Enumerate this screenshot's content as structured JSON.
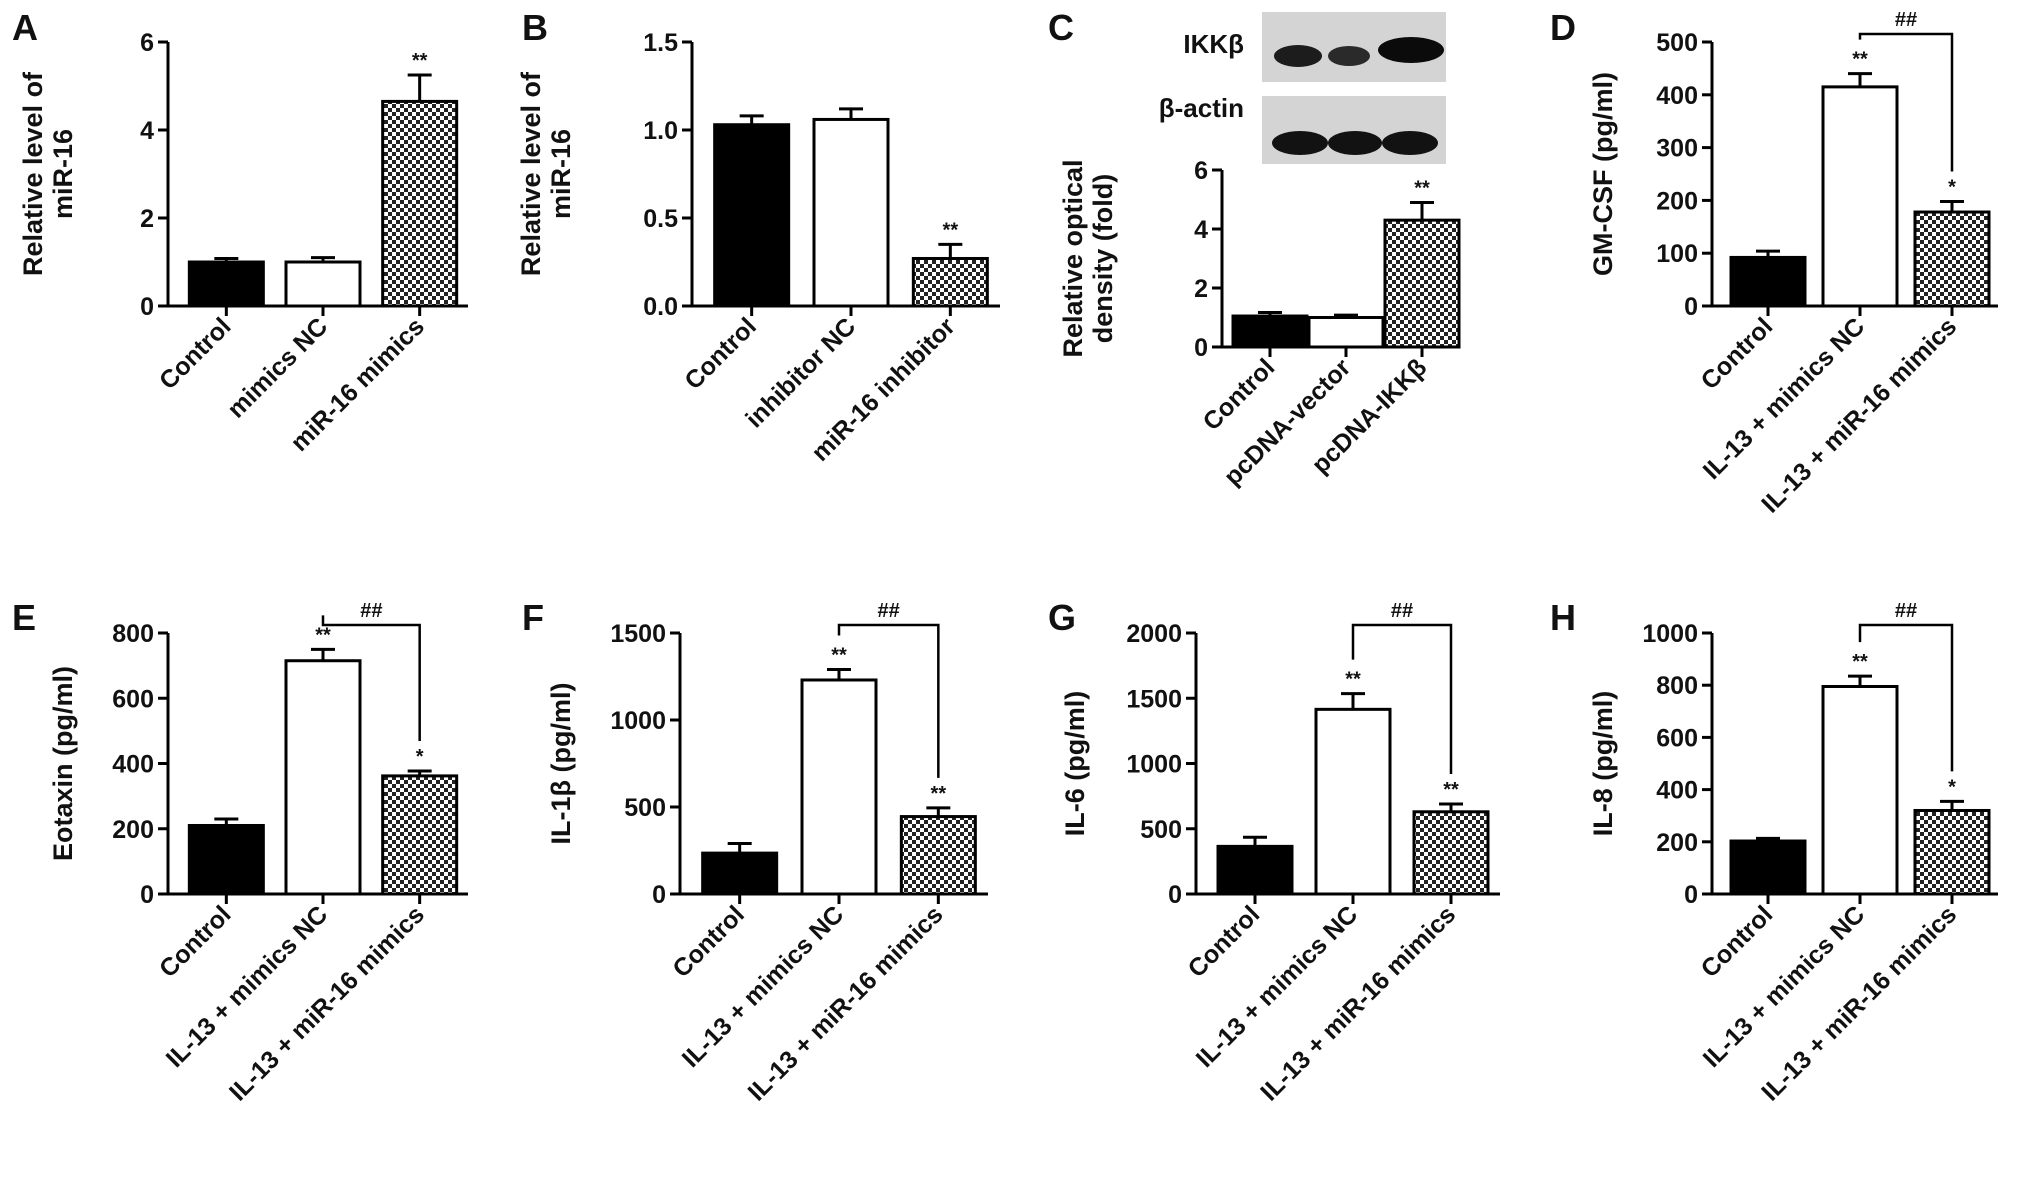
{
  "colors": {
    "solid": "#000000",
    "open": "#ffffff",
    "hatched": "checkerboard-pattern",
    "axis": "#000000",
    "blot_background": "#d6d6d6"
  },
  "panels": [
    {
      "letter": "A"
    },
    {
      "letter": "B"
    },
    {
      "letter": "C"
    },
    {
      "letter": "D"
    },
    {
      "letter": "E"
    },
    {
      "letter": "F"
    },
    {
      "letter": "G"
    },
    {
      "letter": "H"
    }
  ],
  "western_blot": {
    "bands": [
      "IKKβ",
      "β-actin"
    ],
    "lanes": 3
  },
  "chart_data": [
    {
      "panel": "A",
      "type": "bar",
      "categories": [
        "Control",
        "mimics NC",
        "miR-16 mimics"
      ],
      "values": [
        1.0,
        1.0,
        4.65
      ],
      "errors": [
        0.08,
        0.1,
        0.6
      ],
      "fills": [
        "solid",
        "open",
        "hatched"
      ],
      "ylabel": [
        "Relative  level of",
        "miR-16"
      ],
      "ylim": [
        0,
        6
      ],
      "yticks": [
        0,
        2,
        4,
        6
      ],
      "ytick_labels": [
        "0",
        "2",
        "4",
        "6"
      ],
      "annotations": [
        "",
        "",
        "**"
      ],
      "bracket": null
    },
    {
      "panel": "B",
      "type": "bar",
      "categories": [
        "Control",
        "inhibitor NC",
        "miR-16 inhibitor"
      ],
      "values": [
        1.03,
        1.06,
        0.27
      ],
      "errors": [
        0.05,
        0.06,
        0.08
      ],
      "fills": [
        "solid",
        "open",
        "hatched"
      ],
      "ylabel": [
        "Relative  level of",
        "miR-16"
      ],
      "ylim": [
        0,
        1.5
      ],
      "yticks": [
        0,
        0.5,
        1.0,
        1.5
      ],
      "ytick_labels": [
        "0.0",
        "0.5",
        "1.0",
        "1.5"
      ],
      "annotations": [
        "",
        "",
        "**"
      ],
      "bracket": null
    },
    {
      "panel": "C",
      "type": "bar",
      "categories": [
        "Control",
        "pcDNA-vector",
        "pcDNA-IKKβ"
      ],
      "values": [
        1.05,
        1.0,
        4.3
      ],
      "errors": [
        0.12,
        0.08,
        0.6
      ],
      "fills": [
        "solid",
        "open",
        "hatched"
      ],
      "ylabel": [
        "Relative optical",
        "density (fold)"
      ],
      "ylim": [
        0,
        6
      ],
      "yticks": [
        0,
        2,
        4,
        6
      ],
      "ytick_labels": [
        "0",
        "2",
        "4",
        "6"
      ],
      "annotations": [
        "",
        "",
        "**"
      ],
      "bracket": null
    },
    {
      "panel": "D",
      "type": "bar",
      "categories": [
        "Control",
        "IL-13 + mimics NC",
        "IL-13 + miR-16 mimics"
      ],
      "values": [
        92,
        415,
        178
      ],
      "errors": [
        12,
        25,
        20
      ],
      "fills": [
        "solid",
        "open",
        "hatched"
      ],
      "ylabel": [
        "GM-CSF (pg/ml)"
      ],
      "ylim": [
        0,
        500
      ],
      "yticks": [
        0,
        100,
        200,
        300,
        400,
        500
      ],
      "ytick_labels": [
        "0",
        "100",
        "200",
        "300",
        "400",
        "500"
      ],
      "annotations": [
        "",
        "**",
        "*"
      ],
      "bracket": {
        "from": 1,
        "to": 2,
        "label": "##"
      }
    },
    {
      "panel": "E",
      "type": "bar",
      "categories": [
        "Control",
        "IL-13 + mimics NC",
        "IL-13 + miR-16 mimics"
      ],
      "values": [
        210,
        715,
        362
      ],
      "errors": [
        20,
        35,
        15
      ],
      "fills": [
        "solid",
        "open",
        "hatched"
      ],
      "ylabel": [
        "Eotaxin (pg/ml)"
      ],
      "ylim": [
        0,
        800
      ],
      "yticks": [
        0,
        200,
        400,
        600,
        800
      ],
      "ytick_labels": [
        "0",
        "200",
        "400",
        "600",
        "800"
      ],
      "annotations": [
        "",
        "**",
        "*"
      ],
      "bracket": {
        "from": 1,
        "to": 2,
        "label": "##"
      }
    },
    {
      "panel": "F",
      "type": "bar",
      "categories": [
        "Control",
        "IL-13 + mimics NC",
        "IL-13 + miR-16 mimics"
      ],
      "values": [
        235,
        1230,
        445
      ],
      "errors": [
        55,
        60,
        50
      ],
      "fills": [
        "solid",
        "open",
        "hatched"
      ],
      "ylabel": [
        "IL-1β (pg/ml)"
      ],
      "ylim": [
        0,
        1500
      ],
      "yticks": [
        0,
        500,
        1000,
        1500
      ],
      "ytick_labels": [
        "0",
        "500",
        "1000",
        "1500"
      ],
      "annotations": [
        "",
        "**",
        "**"
      ],
      "bracket": {
        "from": 1,
        "to": 2,
        "label": "##"
      }
    },
    {
      "panel": "G",
      "type": "bar",
      "categories": [
        "Control",
        "IL-13 + mimics NC",
        "IL-13 + miR-16 mimics"
      ],
      "values": [
        365,
        1415,
        630
      ],
      "errors": [
        70,
        120,
        60
      ],
      "fills": [
        "solid",
        "open",
        "hatched"
      ],
      "ylabel": [
        "IL-6 (pg/ml)"
      ],
      "ylim": [
        0,
        2000
      ],
      "yticks": [
        0,
        500,
        1000,
        1500,
        2000
      ],
      "ytick_labels": [
        "0",
        "500",
        "1000",
        "1500",
        "2000"
      ],
      "annotations": [
        "",
        "**",
        "**"
      ],
      "bracket": {
        "from": 1,
        "to": 2,
        "label": "##"
      }
    },
    {
      "panel": "H",
      "type": "bar",
      "categories": [
        "Control",
        "IL-13 + mimics NC",
        "IL-13 + miR-16 mimics"
      ],
      "values": [
        203,
        795,
        320
      ],
      "errors": [
        10,
        40,
        35
      ],
      "fills": [
        "solid",
        "open",
        "hatched"
      ],
      "ylabel": [
        "IL-8 (pg/ml)"
      ],
      "ylim": [
        0,
        1000
      ],
      "yticks": [
        0,
        200,
        400,
        600,
        800,
        1000
      ],
      "ytick_labels": [
        "0",
        "200",
        "400",
        "600",
        "800",
        "1000"
      ],
      "annotations": [
        "",
        "**",
        "*"
      ],
      "bracket": {
        "from": 1,
        "to": 2,
        "label": "##"
      }
    }
  ]
}
